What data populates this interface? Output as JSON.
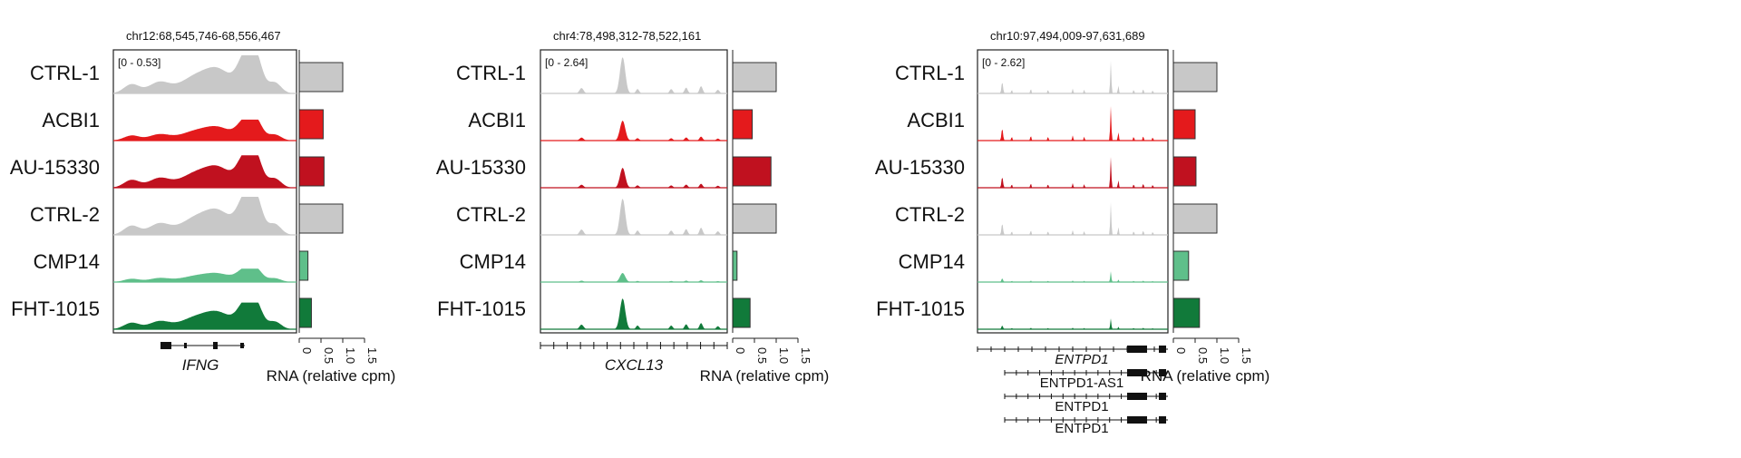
{
  "samples": [
    "CTRL-1",
    "ACBI1",
    "AU-15330",
    "CTRL-2",
    "CMP14",
    "FHT-1015"
  ],
  "colors": {
    "CTRL-1": "#c8c8c8",
    "ACBI1": "#e41a1c",
    "AU-15330": "#c0111f",
    "CTRL-2": "#c8c8c8",
    "CMP14": "#5fbf8a",
    "FHT-1015": "#117a3a"
  },
  "rna_axis": {
    "label": "RNA (relative cpm)",
    "ticks": [
      "0",
      "0.5",
      "1.0",
      "1.5"
    ],
    "range": [
      0,
      1.5
    ]
  },
  "chart_data": [
    {
      "type": "bar",
      "region": "chr12:68,545,746-68,556,467",
      "track_range": "[0 - 0.53]",
      "gene_labels": [
        "IFNG"
      ],
      "rna_axis_label": "RNA (relative cpm)",
      "rna_ticks": [
        "0",
        "0.5",
        "1.0",
        "1.5"
      ],
      "categories": [
        "CTRL-1",
        "ACBI1",
        "AU-15330",
        "CTRL-2",
        "CMP14",
        "FHT-1015"
      ],
      "values": [
        1.0,
        0.55,
        0.57,
        1.0,
        0.2,
        0.28
      ],
      "xlim": [
        0,
        1.5
      ]
    },
    {
      "type": "bar",
      "region": "chr4:78,498,312-78,522,161",
      "track_range": "[0 - 2.64]",
      "gene_labels": [
        "CXCL13"
      ],
      "rna_axis_label": "RNA (relative cpm)",
      "rna_ticks": [
        "0",
        "0.5",
        "1.0",
        "1.5"
      ],
      "categories": [
        "CTRL-1",
        "ACBI1",
        "AU-15330",
        "CTRL-2",
        "CMP14",
        "FHT-1015"
      ],
      "values": [
        1.0,
        0.45,
        0.88,
        1.0,
        0.1,
        0.4
      ],
      "xlim": [
        0,
        1.5
      ]
    },
    {
      "type": "bar",
      "region": "chr10:97,494,009-97,631,689",
      "track_range": "[0 - 2.62]",
      "gene_labels": [
        "ENTPD1",
        "ENTPD1-AS1",
        "ENTPD1",
        "ENTPD1"
      ],
      "rna_axis_label": "RNA (relative cpm)",
      "rna_ticks": [
        "0",
        "0.5",
        "1.0",
        "1.5"
      ],
      "categories": [
        "CTRL-1",
        "ACBI1",
        "AU-15330",
        "CTRL-2",
        "CMP14",
        "FHT-1015"
      ],
      "values": [
        1.0,
        0.5,
        0.52,
        1.0,
        0.35,
        0.6
      ],
      "xlim": [
        0,
        1.5
      ]
    }
  ]
}
